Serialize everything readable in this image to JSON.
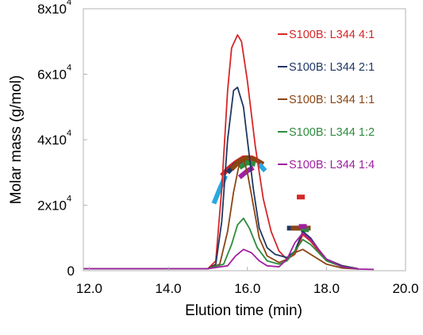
{
  "chart_data": {
    "type": "line",
    "title": "",
    "xlabel": "Elution time (min)",
    "ylabel": "Molar mass (g/mol)",
    "xlim": [
      11.85,
      20.0
    ],
    "ylim": [
      0,
      80000
    ],
    "grid": false,
    "legend_position": "top-right",
    "x_ticks": [
      {
        "value": 12.0,
        "label": "12.0"
      },
      {
        "value": 14.0,
        "label": "14.0"
      },
      {
        "value": 16.0,
        "label": "16.0"
      },
      {
        "value": 18.0,
        "label": "18.0"
      },
      {
        "value": 20.0,
        "label": "20.0"
      }
    ],
    "y_ticks": [
      {
        "value": 0,
        "base": "0",
        "exp": ""
      },
      {
        "value": 20000,
        "base": "2x10",
        "exp": "4"
      },
      {
        "value": 40000,
        "base": "4x10",
        "exp": "4"
      },
      {
        "value": 60000,
        "base": "6x10",
        "exp": "4"
      },
      {
        "value": 80000,
        "base": "8x10",
        "exp": "4"
      }
    ],
    "series": [
      {
        "name": "S100B: L344 4:1",
        "color": "#d62728",
        "signal": [
          [
            11.85,
            600
          ],
          [
            15.0,
            600
          ],
          [
            15.2,
            3000
          ],
          [
            15.35,
            25000
          ],
          [
            15.5,
            55000
          ],
          [
            15.6,
            68000
          ],
          [
            15.75,
            72000
          ],
          [
            15.85,
            70000
          ],
          [
            16.0,
            58000
          ],
          [
            16.2,
            38000
          ],
          [
            16.4,
            22000
          ],
          [
            16.6,
            12000
          ],
          [
            16.8,
            6000
          ],
          [
            17.0,
            3500
          ],
          [
            17.2,
            5000
          ],
          [
            17.4,
            11000
          ],
          [
            17.6,
            9000
          ],
          [
            17.8,
            6000
          ],
          [
            18.0,
            3500
          ],
          [
            18.4,
            1500
          ],
          [
            18.8,
            600
          ]
        ],
        "mass": [
          [
            [
              15.35,
              29000
            ],
            [
              15.5,
              31000
            ],
            [
              15.7,
              33000
            ],
            [
              15.9,
              34500
            ],
            [
              16.1,
              34500
            ],
            [
              16.2,
              34000
            ]
          ],
          [
            [
              17.25,
              22500
            ],
            [
              17.45,
              22500
            ]
          ]
        ]
      },
      {
        "name": "S100B: L344 2:1",
        "color": "#1f3864",
        "signal": [
          [
            11.85,
            600
          ],
          [
            15.0,
            600
          ],
          [
            15.2,
            2000
          ],
          [
            15.35,
            15000
          ],
          [
            15.5,
            40000
          ],
          [
            15.65,
            55000
          ],
          [
            15.75,
            56000
          ],
          [
            15.9,
            50000
          ],
          [
            16.0,
            40000
          ],
          [
            16.15,
            25000
          ],
          [
            16.3,
            13000
          ],
          [
            16.5,
            7000
          ],
          [
            16.7,
            5000
          ],
          [
            17.0,
            4000
          ],
          [
            17.2,
            6000
          ],
          [
            17.4,
            12000
          ],
          [
            17.6,
            10000
          ],
          [
            17.8,
            6500
          ],
          [
            18.0,
            3500
          ],
          [
            18.4,
            1500
          ],
          [
            18.8,
            600
          ]
        ],
        "mass": [
          [
            [
              15.5,
              30000
            ],
            [
              15.7,
              32500
            ],
            [
              15.9,
              34000
            ],
            [
              16.1,
              33500
            ]
          ],
          [
            [
              17.0,
              13000
            ],
            [
              17.5,
              13000
            ]
          ]
        ]
      },
      {
        "name": "S100B: L344 1:1",
        "color": "#8b4513",
        "signal": [
          [
            11.85,
            600
          ],
          [
            15.0,
            600
          ],
          [
            15.3,
            2000
          ],
          [
            15.5,
            12000
          ],
          [
            15.65,
            24000
          ],
          [
            15.8,
            33000
          ],
          [
            15.9,
            34000
          ],
          [
            16.0,
            30000
          ],
          [
            16.15,
            20000
          ],
          [
            16.3,
            10000
          ],
          [
            16.5,
            4500
          ],
          [
            16.8,
            2500
          ],
          [
            17.0,
            3500
          ],
          [
            17.2,
            5500
          ],
          [
            17.4,
            6500
          ],
          [
            17.6,
            5000
          ],
          [
            17.8,
            3500
          ],
          [
            18.0,
            2000
          ],
          [
            18.4,
            800
          ],
          [
            18.8,
            500
          ]
        ],
        "mass": [
          [
            [
              15.6,
              31000
            ],
            [
              15.8,
              33500
            ],
            [
              16.0,
              34500
            ],
            [
              16.2,
              34000
            ],
            [
              16.4,
              32500
            ]
          ],
          [
            [
              17.1,
              13000
            ],
            [
              17.6,
              13000
            ]
          ]
        ]
      },
      {
        "name": "S100B: L344 1:2",
        "color": "#2e8b3e",
        "signal": [
          [
            11.85,
            600
          ],
          [
            15.0,
            600
          ],
          [
            15.4,
            2000
          ],
          [
            15.6,
            8000
          ],
          [
            15.75,
            14000
          ],
          [
            15.9,
            16000
          ],
          [
            16.05,
            13000
          ],
          [
            16.25,
            7000
          ],
          [
            16.5,
            3000
          ],
          [
            16.8,
            2000
          ],
          [
            17.0,
            3000
          ],
          [
            17.2,
            6000
          ],
          [
            17.4,
            9500
          ],
          [
            17.6,
            8000
          ],
          [
            17.8,
            5500
          ],
          [
            18.0,
            3000
          ],
          [
            18.4,
            1200
          ],
          [
            18.8,
            500
          ]
        ],
        "mass": [
          [
            [
              15.8,
              31500
            ],
            [
              16.0,
              33000
            ],
            [
              16.2,
              32500
            ]
          ],
          [
            [
              17.35,
              12500
            ],
            [
              17.55,
              12500
            ]
          ]
        ]
      },
      {
        "name": "S100B: L344 1:4",
        "color": "#a020a0",
        "signal": [
          [
            11.85,
            600
          ],
          [
            15.0,
            600
          ],
          [
            15.5,
            1500
          ],
          [
            15.7,
            4500
          ],
          [
            15.9,
            6500
          ],
          [
            16.1,
            5500
          ],
          [
            16.3,
            3000
          ],
          [
            16.5,
            1500
          ],
          [
            16.8,
            1200
          ],
          [
            17.0,
            3500
          ],
          [
            17.2,
            8500
          ],
          [
            17.4,
            11500
          ],
          [
            17.6,
            9500
          ],
          [
            17.8,
            6500
          ],
          [
            18.0,
            3500
          ],
          [
            18.4,
            1200
          ],
          [
            18.8,
            500
          ],
          [
            19.2,
            400
          ]
        ],
        "mass": [
          [
            [
              15.8,
              28500
            ],
            [
              16.0,
              30500
            ],
            [
              16.15,
              31500
            ]
          ],
          [
            [
              17.3,
              13500
            ],
            [
              17.5,
              13500
            ]
          ]
        ]
      },
      {
        "name": "",
        "color": "#29a9e0",
        "signal": [],
        "mass": [
          [
            [
              15.15,
              20500
            ],
            [
              15.3,
              25000
            ],
            [
              15.45,
              29000
            ]
          ],
          [
            [
              16.3,
              32500
            ],
            [
              16.45,
              30500
            ]
          ]
        ]
      }
    ]
  }
}
